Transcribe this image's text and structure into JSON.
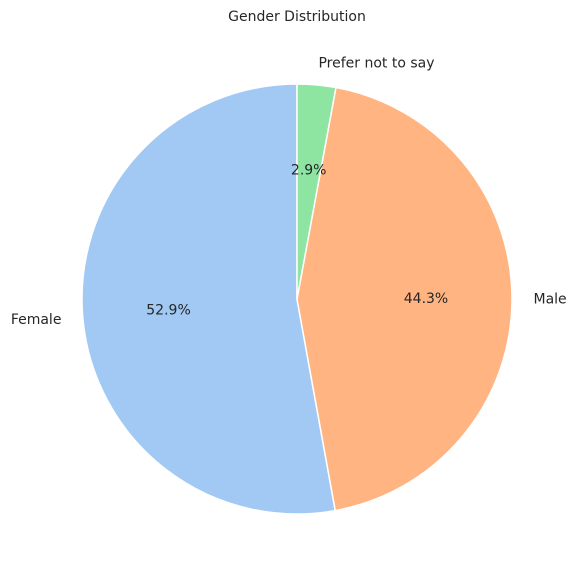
{
  "chart_data": {
    "type": "pie",
    "title": "Gender Distribution",
    "categories": [
      "Female",
      "Male",
      "Prefer not to say"
    ],
    "values": [
      52.9,
      44.3,
      2.9
    ],
    "value_labels": [
      "52.9%",
      "44.3%",
      "2.9%"
    ],
    "colors": [
      "#a1c9f4",
      "#ffb482",
      "#8de5a1"
    ]
  }
}
